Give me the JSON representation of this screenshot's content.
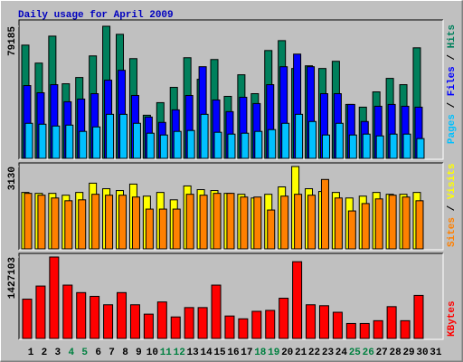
{
  "chart_data": [
    {
      "type": "bar",
      "title": "Daily usage for April 2009",
      "title_color": "#0000c0",
      "legend_separator": "/",
      "ylim": [
        0,
        79185
      ],
      "yticks": [
        79185
      ],
      "series": [
        {
          "name": "Hits",
          "color": "#00805c",
          "values": [
            67870,
            57100,
            73260,
            44710,
            48480,
            61410,
            79185,
            74340,
            59790,
            25860,
            33400,
            42560,
            60330,
            47400,
            59250,
            37170,
            50100,
            38780,
            64640,
            70570,
            53870,
            55480,
            53870,
            58180,
            32320,
            30700,
            39860,
            47940,
            44170,
            66260,
            null
          ]
        },
        {
          "name": "Files",
          "color": "#0000ff",
          "values": [
            43630,
            39320,
            44170,
            33940,
            35550,
            38780,
            46870,
            52790,
            37710,
            24780,
            21550,
            29090,
            37710,
            54940,
            35010,
            28010,
            36630,
            32860,
            44170,
            54940,
            62490,
            54940,
            38780,
            38780,
            32320,
            22090,
            31240,
            32320,
            31240,
            30700,
            null
          ]
        },
        {
          "name": "Pages",
          "color": "#00c0ff",
          "values": [
            21010,
            20470,
            19390,
            19930,
            16160,
            18850,
            26400,
            26400,
            21010,
            15080,
            14010,
            16160,
            16700,
            26400,
            15620,
            14540,
            15080,
            16160,
            17240,
            21010,
            26400,
            22090,
            14010,
            21010,
            14010,
            14540,
            13470,
            14540,
            14540,
            11850,
            null
          ]
        }
      ]
    },
    {
      "type": "bar",
      "legend_separator": "/",
      "ylim": [
        0,
        3130
      ],
      "yticks": [
        3130
      ],
      "series": [
        {
          "name": "Visits",
          "color": "#ffff00",
          "values": [
            2145,
            2110,
            2110,
            2040,
            2145,
            2497,
            2286,
            2216,
            2462,
            2005,
            2145,
            1864,
            2392,
            2251,
            2216,
            2110,
            2075,
            1934,
            2075,
            2356,
            3130,
            2286,
            2181,
            2145,
            1934,
            2005,
            2145,
            2075,
            2075,
            2145,
            null
          ]
        },
        {
          "name": "Sites",
          "color": "#ff8000",
          "values": [
            2110,
            2040,
            1934,
            1829,
            1864,
            2075,
            2040,
            2040,
            1970,
            1512,
            1512,
            1512,
            2075,
            2040,
            2110,
            2110,
            1970,
            1970,
            1477,
            2005,
            2075,
            2040,
            2638,
            1934,
            1442,
            1723,
            1899,
            2040,
            1970,
            1829,
            null
          ]
        }
      ]
    },
    {
      "type": "bar",
      "ylim": [
        0,
        1427103
      ],
      "yticks": [
        1427103
      ],
      "series": [
        {
          "name": "KBytes",
          "color": "#ff0000",
          "values": [
            688930,
            918570,
            1427103,
            934970,
            803750,
            738140,
            590510,
            803750,
            590510,
            426480,
            639720,
            377270,
            541300,
            541300,
            934970,
            393670,
            344460,
            475690,
            492090,
            705330,
            1345050,
            590510,
            574110,
            459290,
            262450,
            262450,
            311660,
            557700,
            311660,
            754540,
            null
          ]
        }
      ],
      "categories": [
        "1",
        "2",
        "3",
        "4",
        "5",
        "6",
        "7",
        "8",
        "9",
        "10",
        "11",
        "12",
        "13",
        "14",
        "15",
        "16",
        "17",
        "18",
        "19",
        "20",
        "21",
        "22",
        "23",
        "24",
        "25",
        "26",
        "27",
        "28",
        "29",
        "30",
        "31"
      ],
      "category_colors": [
        "#000000",
        "#000000",
        "#000000",
        "#008040",
        "#008040",
        "#000000",
        "#000000",
        "#000000",
        "#000000",
        "#000000",
        "#008040",
        "#008040",
        "#000000",
        "#000000",
        "#000000",
        "#000000",
        "#000000",
        "#008040",
        "#008040",
        "#000000",
        "#000000",
        "#000000",
        "#000000",
        "#000000",
        "#008040",
        "#008040",
        "#000000",
        "#000000",
        "#000000",
        "#000000",
        "#000000"
      ]
    }
  ]
}
